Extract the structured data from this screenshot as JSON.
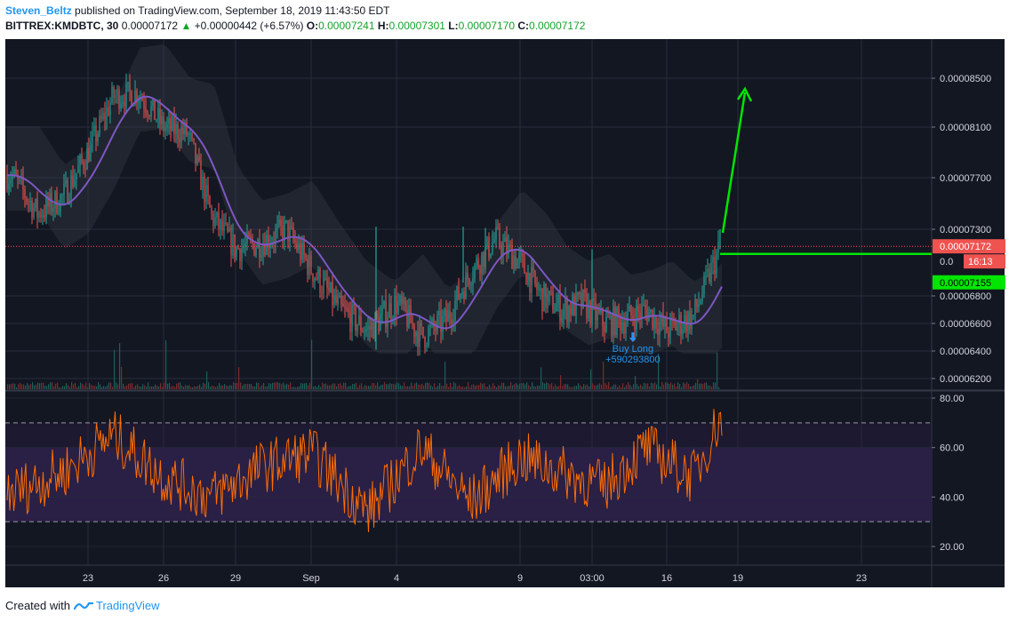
{
  "header": {
    "author": "Steven_Beltz",
    "published_text": "published on TradingView.com, September 18, 2019 11:43:50 EDT",
    "symbol": "BITTREX:KMDBTC, 30",
    "last": "0.00007172",
    "change_arrow": "▲",
    "change": "+0.00000442 (+6.57%)",
    "o_label": "O:",
    "o_value": "0.00007241",
    "h_label": "H:",
    "h_value": "0.00007301",
    "l_label": "L:",
    "l_value": "0.00007170",
    "c_label": "C:",
    "c_value": "0.00007172"
  },
  "footer": {
    "created_with": "Created with",
    "brand": "TradingView",
    "brand_icon": "tradingview-logo-icon"
  },
  "colors": {
    "background": "#131722",
    "grid": "#2a2e39",
    "candle_up": "#26a69a",
    "candle_down": "#ef5350",
    "ma_line": "#7e57c2",
    "rsi_line": "#ff6d00",
    "rsi_band": "#2a1f45",
    "projection": "#00e600",
    "price_label": "#ef5350",
    "projection_label": "#00e600",
    "annotation": "#2196f3"
  },
  "annotations": {
    "buy_label": "Buy Long",
    "buy_value": "+590293800",
    "countdown": "16:13",
    "current_price_label": "0.00007172",
    "target_label": "0.00007155",
    "hidden_label": "0.0"
  },
  "chart_data": [
    {
      "type": "candlestick",
      "title": "",
      "symbol": "BITTREX:KMDBTC",
      "interval": "30",
      "xlabel": "",
      "ylabel": "",
      "x_tick_labels": [
        "23",
        "26",
        "29",
        "Sep",
        "4",
        "9",
        "03:00",
        "16",
        "19",
        "23"
      ],
      "y_tick_labels": [
        "0.00008500",
        "0.00008100",
        "0.00007700",
        "0.00007300",
        "0.00006800",
        "0.00006600",
        "0.00006400",
        "0.00006200"
      ],
      "y_ticks": [
        8.5e-05,
        8.1e-05,
        7.7e-05,
        7.3e-05,
        6.8e-05,
        6.6e-05,
        6.4e-05,
        6.2e-05
      ],
      "ylim": [
        6.17e-05,
        8.75e-05
      ],
      "close_path_approx": {
        "x": [
          "Aug 20",
          "Aug 21",
          "Aug 22",
          "Aug 23",
          "Aug 24",
          "Aug 25",
          "Aug 26",
          "Aug 27",
          "Aug 28",
          "Aug 29",
          "Aug 30",
          "Aug 31",
          "Sep 1",
          "Sep 2",
          "Sep 3",
          "Sep 4",
          "Sep 5",
          "Sep 6",
          "Sep 7",
          "Sep 8",
          "Sep 9",
          "Sep 10",
          "Sep 11",
          "Sep 12",
          "Sep 13",
          "Sep 14",
          "Sep 15",
          "Sep 16",
          "Sep 17",
          "Sep 18"
        ],
        "close": [
          7.72e-05,
          7.42e-05,
          7.55e-05,
          7.9e-05,
          8.35e-05,
          8.38e-05,
          8.1e-05,
          8.05e-05,
          7.4e-05,
          7.15e-05,
          7.2e-05,
          7.3e-05,
          7e-05,
          6.7e-05,
          6.55e-05,
          6.75e-05,
          6.5e-05,
          6.62e-05,
          6.98e-05,
          7.23e-05,
          7.05e-05,
          6.8e-05,
          6.7e-05,
          6.75e-05,
          6.6e-05,
          6.63e-05,
          6.7e-05,
          6.55e-05,
          6.65e-05,
          7.17e-05
        ]
      },
      "moving_average": "MA (purple line)",
      "current_price": 7.172e-05,
      "projection": {
        "level": 7.155e-05,
        "target_direction": "up"
      },
      "annotation": {
        "text": "Buy Long",
        "value": "+590293800",
        "x": "Sep 14"
      },
      "grid": true
    },
    {
      "type": "line",
      "title": "",
      "indicator": "RSI",
      "y_tick_labels": [
        "80.00",
        "60.00",
        "40.00",
        "20.00"
      ],
      "y_ticks": [
        80,
        60,
        40,
        20
      ],
      "ylim": [
        16,
        82
      ],
      "bands": [
        30,
        70
      ],
      "band_fill_range": [
        30,
        60
      ],
      "rsi_path_approx": {
        "x": [
          "Aug 20",
          "Aug 22",
          "Aug 24",
          "Aug 26",
          "Aug 28",
          "Aug 30",
          "Sep 1",
          "Sep 3",
          "Sep 5",
          "Sep 7",
          "Sep 9",
          "Sep 11",
          "Sep 13",
          "Sep 15",
          "Sep 17",
          "Sep 18"
        ],
        "values": [
          42,
          50,
          65,
          48,
          40,
          52,
          58,
          34,
          60,
          38,
          56,
          50,
          44,
          60,
          48,
          72
        ]
      },
      "grid": true
    }
  ]
}
